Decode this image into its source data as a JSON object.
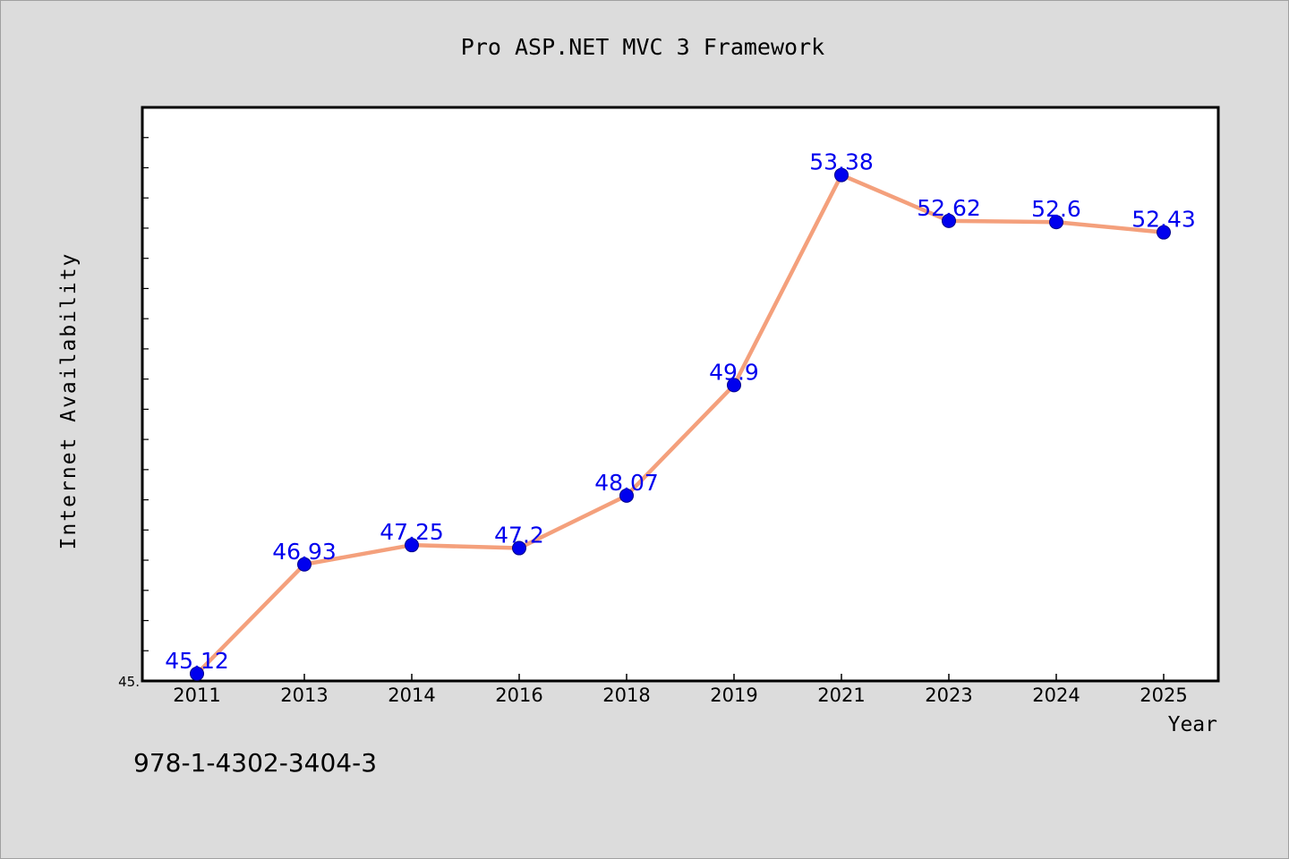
{
  "chart_data": {
    "type": "line",
    "title": "Pro ASP.NET MVC 3 Framework",
    "xlabel": "Year",
    "ylabel": "Internet Availability",
    "categories": [
      "2011",
      "2013",
      "2014",
      "2016",
      "2018",
      "2019",
      "2021",
      "2023",
      "2024",
      "2025"
    ],
    "values": [
      45.12,
      46.93,
      47.25,
      47.2,
      48.07,
      49.9,
      53.38,
      52.62,
      52.6,
      52.43
    ],
    "data_labels": [
      "45.12",
      "46.93",
      "47.25",
      "47.2",
      "48.07",
      "49.9",
      "53.38",
      "52.62",
      "52.6",
      "52.43"
    ],
    "y_tick_label": "45.",
    "ylim": [
      45.0,
      54.5
    ],
    "grid": false,
    "legend": "none",
    "line_color": "#f4a07c",
    "marker_color": "#0000ee",
    "label_color": "#0000ee"
  },
  "footer_text": "978-1-4302-3404-3"
}
